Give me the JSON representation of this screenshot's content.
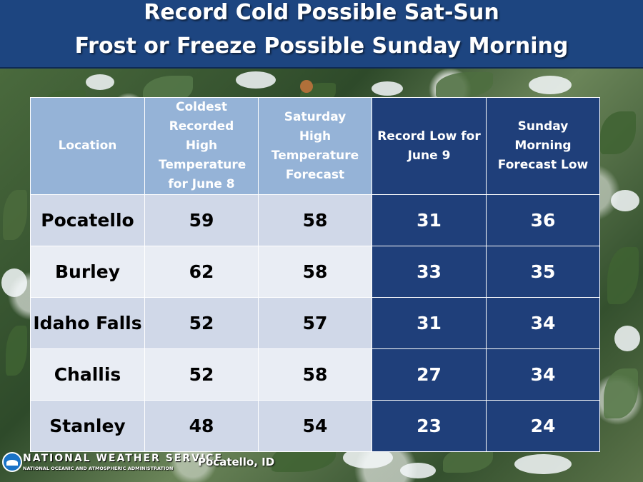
{
  "title": {
    "line1": "Record Cold Possible Sat-Sun",
    "line2": "Frost or Freeze Possible Sunday Morning"
  },
  "table": {
    "headers": [
      "Location",
      "Coldest Recorded High Temperature for June 8",
      "Saturday High Temperature Forecast",
      "Record Low for June 9",
      "Sunday Morning Forecast Low"
    ],
    "rows": [
      [
        "Pocatello",
        "59",
        "58",
        "31",
        "36"
      ],
      [
        "Burley",
        "62",
        "58",
        "33",
        "35"
      ],
      [
        "Idaho Falls",
        "52",
        "57",
        "31",
        "34"
      ],
      [
        "Challis",
        "52",
        "58",
        "27",
        "34"
      ],
      [
        "Stanley",
        "48",
        "54",
        "23",
        "24"
      ]
    ]
  },
  "footer": {
    "org": "NATIONAL WEATHER SERVICE",
    "parent": "NATIONAL OCEANIC AND ATMOSPHERIC ADMINISTRATION",
    "office": "Pocatello, ID"
  },
  "colors": {
    "title_bg": "#1d4580",
    "header_light": "#95b3d7",
    "header_dark": "#1f3f7a",
    "row_light_a": "#d0d8e8",
    "row_light_b": "#e9edf4"
  }
}
